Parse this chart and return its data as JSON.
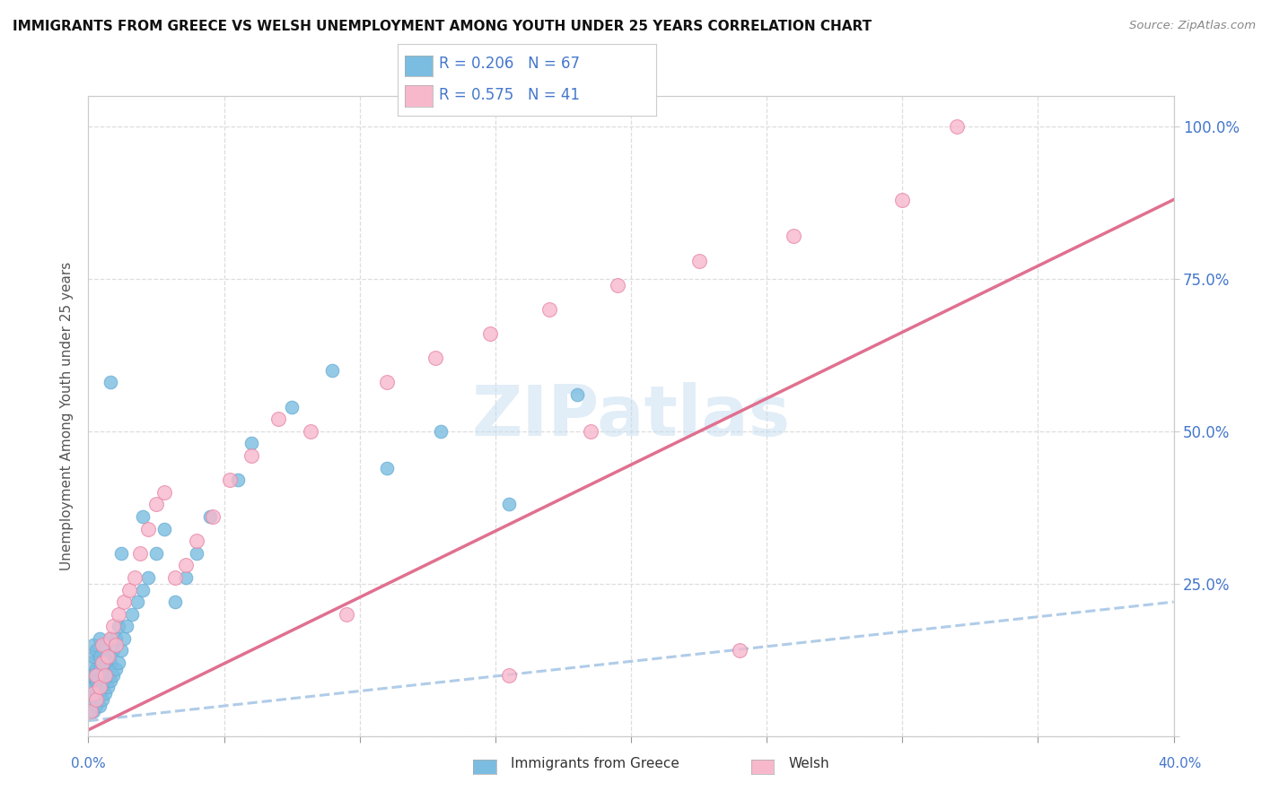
{
  "title": "IMMIGRANTS FROM GREECE VS WELSH UNEMPLOYMENT AMONG YOUTH UNDER 25 YEARS CORRELATION CHART",
  "source": "Source: ZipAtlas.com",
  "ylabel": "Unemployment Among Youth under 25 years",
  "yticks": [
    0.0,
    0.25,
    0.5,
    0.75,
    1.0
  ],
  "ytick_labels": [
    "",
    "25.0%",
    "50.0%",
    "75.0%",
    "100.0%"
  ],
  "xtick_labels": [
    "0.0%",
    "",
    "",
    "",
    "",
    "",
    "",
    "",
    "40.0%"
  ],
  "legend_series1_label": "Immigrants from Greece",
  "legend_series2_label": "Welsh",
  "color_blue": "#7bbde0",
  "color_blue_edge": "#6aaed6",
  "color_blue_line": "#b0cce8",
  "color_pink": "#f7b8cc",
  "color_pink_edge": "#e888a8",
  "color_pink_line": "#e07090",
  "color_text_blue": "#4477cc",
  "watermark": "ZIPatlas",
  "blue_x": [
    0.001,
    0.001,
    0.001,
    0.001,
    0.001,
    0.002,
    0.002,
    0.002,
    0.002,
    0.002,
    0.002,
    0.003,
    0.003,
    0.003,
    0.003,
    0.003,
    0.004,
    0.004,
    0.004,
    0.004,
    0.004,
    0.004,
    0.005,
    0.005,
    0.005,
    0.005,
    0.005,
    0.006,
    0.006,
    0.006,
    0.006,
    0.007,
    0.007,
    0.007,
    0.008,
    0.008,
    0.008,
    0.009,
    0.009,
    0.01,
    0.01,
    0.011,
    0.011,
    0.012,
    0.013,
    0.014,
    0.016,
    0.018,
    0.02,
    0.022,
    0.025,
    0.028,
    0.032,
    0.036,
    0.04,
    0.045,
    0.055,
    0.06,
    0.075,
    0.09,
    0.11,
    0.13,
    0.155,
    0.18,
    0.02,
    0.012,
    0.008
  ],
  "blue_y": [
    0.04,
    0.06,
    0.08,
    0.1,
    0.12,
    0.04,
    0.07,
    0.08,
    0.1,
    0.13,
    0.15,
    0.05,
    0.07,
    0.09,
    0.11,
    0.14,
    0.05,
    0.07,
    0.09,
    0.11,
    0.13,
    0.16,
    0.06,
    0.08,
    0.1,
    0.12,
    0.15,
    0.07,
    0.09,
    0.12,
    0.15,
    0.08,
    0.1,
    0.13,
    0.09,
    0.12,
    0.16,
    0.1,
    0.14,
    0.11,
    0.16,
    0.12,
    0.18,
    0.14,
    0.16,
    0.18,
    0.2,
    0.22,
    0.24,
    0.26,
    0.3,
    0.34,
    0.22,
    0.26,
    0.3,
    0.36,
    0.42,
    0.48,
    0.54,
    0.6,
    0.44,
    0.5,
    0.38,
    0.56,
    0.36,
    0.3,
    0.58
  ],
  "pink_x": [
    0.001,
    0.002,
    0.003,
    0.003,
    0.004,
    0.005,
    0.005,
    0.006,
    0.007,
    0.008,
    0.009,
    0.01,
    0.011,
    0.013,
    0.015,
    0.017,
    0.019,
    0.022,
    0.025,
    0.028,
    0.032,
    0.036,
    0.04,
    0.046,
    0.052,
    0.06,
    0.07,
    0.082,
    0.095,
    0.11,
    0.128,
    0.148,
    0.17,
    0.195,
    0.225,
    0.26,
    0.3,
    0.185,
    0.32,
    0.24,
    0.155
  ],
  "pink_y": [
    0.04,
    0.07,
    0.06,
    0.1,
    0.08,
    0.12,
    0.15,
    0.1,
    0.13,
    0.16,
    0.18,
    0.15,
    0.2,
    0.22,
    0.24,
    0.26,
    0.3,
    0.34,
    0.38,
    0.4,
    0.26,
    0.28,
    0.32,
    0.36,
    0.42,
    0.46,
    0.52,
    0.5,
    0.2,
    0.58,
    0.62,
    0.66,
    0.7,
    0.74,
    0.78,
    0.82,
    0.88,
    0.5,
    1.0,
    0.14,
    0.1
  ],
  "blue_trend_x": [
    0.0,
    0.4
  ],
  "blue_trend_y": [
    0.025,
    0.22
  ],
  "pink_trend_x": [
    0.0,
    0.4
  ],
  "pink_trend_y": [
    0.01,
    0.88
  ],
  "xlim": [
    0.0,
    0.4
  ],
  "ylim": [
    0.0,
    1.05
  ],
  "figsize": [
    14.06,
    8.92
  ],
  "dpi": 100
}
